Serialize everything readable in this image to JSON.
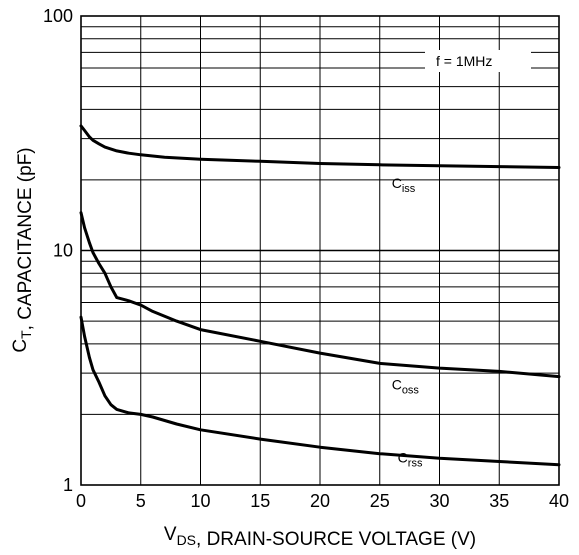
{
  "chart_data": {
    "type": "line",
    "title": "",
    "xlabel": {
      "parts": [
        {
          "text": "V",
          "sub": false
        },
        {
          "text": "DS",
          "sub": true
        },
        {
          "text": ", DRAIN-SOURCE VOLTAGE (V)",
          "sub": false
        }
      ]
    },
    "ylabel": {
      "parts": [
        {
          "text": "C",
          "sub": false
        },
        {
          "text": "T",
          "sub": true
        },
        {
          "text": ", CAPACITANCE (pF)",
          "sub": false
        }
      ]
    },
    "x_scale": "linear",
    "y_scale": "log",
    "xlim": [
      0,
      40
    ],
    "ylim": [
      1,
      100
    ],
    "x_ticks": [
      "0",
      "5",
      "10",
      "15",
      "20",
      "25",
      "30",
      "35",
      "40"
    ],
    "y_ticks": [
      "1",
      "10",
      "100"
    ],
    "grid": true,
    "annotation": "f = 1MHz",
    "line_color": "#000000",
    "series": [
      {
        "name": {
          "main": "C",
          "sub": "iss"
        },
        "label_at": [
          26,
          18.5
        ],
        "x": [
          0,
          0.3,
          0.7,
          1,
          1.5,
          2,
          3,
          4,
          5,
          7,
          10,
          15,
          20,
          25,
          30,
          35,
          40
        ],
        "y": [
          34,
          32.5,
          30.5,
          29.5,
          28.5,
          27.6,
          26.6,
          26,
          25.6,
          25,
          24.5,
          24,
          23.5,
          23.2,
          23,
          22.8,
          22.6
        ]
      },
      {
        "name": {
          "main": "C",
          "sub": "oss"
        },
        "label_at": [
          26,
          2.55
        ],
        "x": [
          0,
          0.3,
          0.7,
          1,
          1.5,
          2,
          2.5,
          3,
          4,
          5,
          6,
          8,
          10,
          15,
          20,
          25,
          30,
          35,
          40
        ],
        "y": [
          14.5,
          12.5,
          10.8,
          9.8,
          8.8,
          8,
          7,
          6.3,
          6.1,
          5.85,
          5.5,
          5,
          4.6,
          4.1,
          3.65,
          3.3,
          3.15,
          3.05,
          2.9
        ]
      },
      {
        "name": {
          "main": "C",
          "sub": "rss"
        },
        "label_at": [
          26.5,
          1.25
        ],
        "x": [
          0,
          0.3,
          0.7,
          1,
          1.5,
          2,
          2.5,
          3,
          4,
          5,
          6,
          8,
          10,
          15,
          20,
          25,
          30,
          35,
          40
        ],
        "y": [
          5.2,
          4.3,
          3.5,
          3.1,
          2.75,
          2.4,
          2.2,
          2.1,
          2.03,
          2,
          1.95,
          1.82,
          1.72,
          1.57,
          1.45,
          1.36,
          1.3,
          1.26,
          1.22
        ]
      }
    ]
  }
}
